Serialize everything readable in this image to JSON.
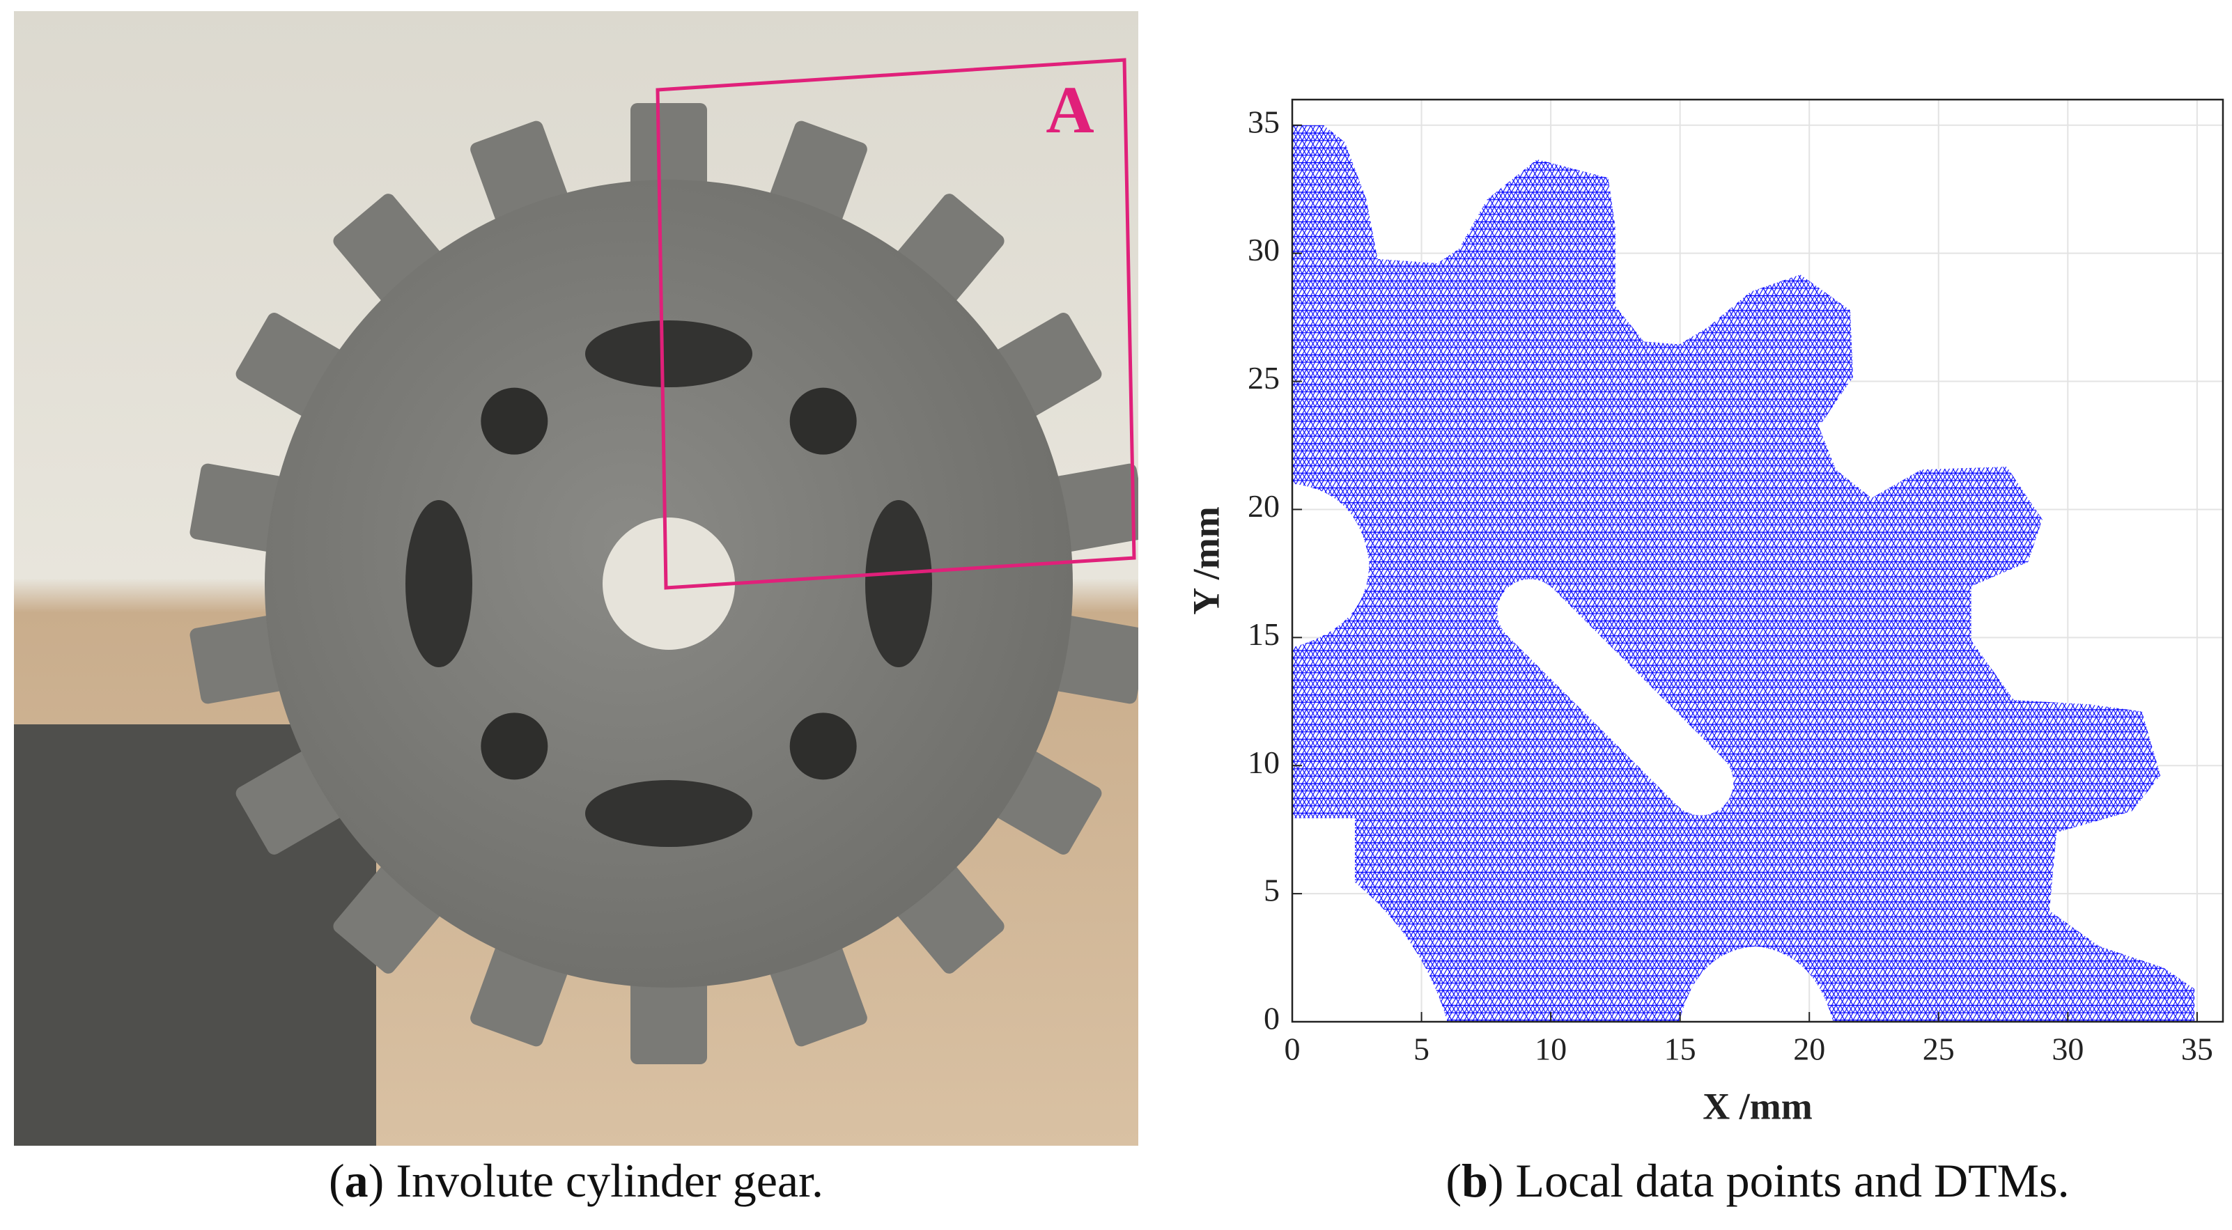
{
  "figure_a": {
    "annotation": "A",
    "caption": {
      "prefix": "(",
      "label": "a",
      "text": ") Involute cylinder gear."
    }
  },
  "chart_data": {
    "type": "mesh",
    "xlabel": "X /mm",
    "ylabel": "Y /mm",
    "xlim": [
      0,
      36
    ],
    "ylim": [
      0,
      36
    ],
    "xticks": [
      0,
      5,
      10,
      15,
      20,
      25,
      30,
      35
    ],
    "yticks": [
      0,
      5,
      10,
      15,
      20,
      25,
      30,
      35
    ],
    "grid": true,
    "color": "#0000ff",
    "caption": {
      "prefix": "(",
      "label": "b",
      "text": ") Local data points and DTMs."
    }
  }
}
